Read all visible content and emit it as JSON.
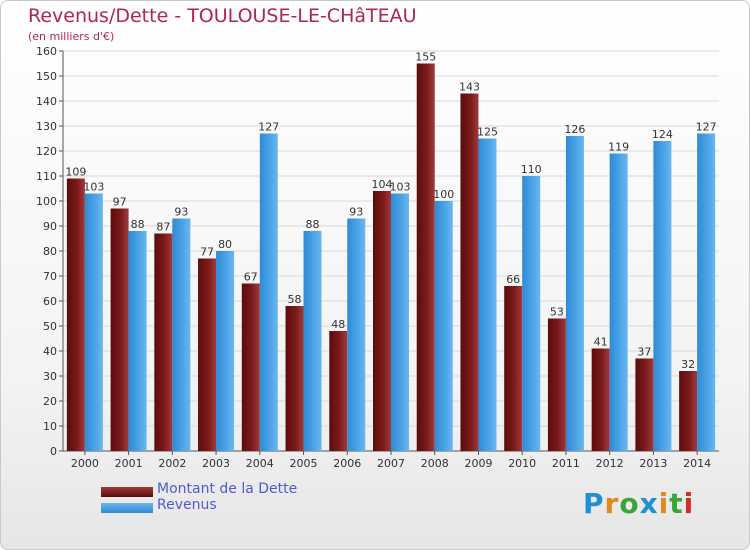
{
  "chart_data": {
    "type": "bar",
    "title": "Revenus/Dette - TOULOUSE-LE-CHâTEAU",
    "subtitle": "(en milliers d'€)",
    "categories": [
      "2000",
      "2001",
      "2002",
      "2003",
      "2004",
      "2005",
      "2006",
      "2007",
      "2008",
      "2009",
      "2010",
      "2011",
      "2012",
      "2013",
      "2014"
    ],
    "series": [
      {
        "name": "Montant de la Dette",
        "values": [
          109,
          97,
          87,
          77,
          67,
          58,
          48,
          104,
          155,
          143,
          66,
          53,
          41,
          37,
          32
        ],
        "color": "#7a1a1a"
      },
      {
        "name": "Revenus",
        "values": [
          103,
          88,
          93,
          80,
          127,
          88,
          93,
          103,
          100,
          125,
          110,
          126,
          119,
          124,
          127
        ],
        "color": "#4aa3e6"
      }
    ],
    "yticks": [
      0,
      10,
      20,
      30,
      40,
      50,
      60,
      70,
      80,
      90,
      100,
      110,
      120,
      130,
      140,
      150,
      160
    ],
    "ylim": [
      0,
      160
    ],
    "grid": true,
    "legend_position": "bottom-left"
  },
  "logo": {
    "text": "Proxiti",
    "colors": [
      "#1f8fd6",
      "#e08a1e",
      "#3aa63a",
      "#1f8fd6",
      "#e08a1e",
      "#3aa63a",
      "#d12b2b"
    ]
  }
}
